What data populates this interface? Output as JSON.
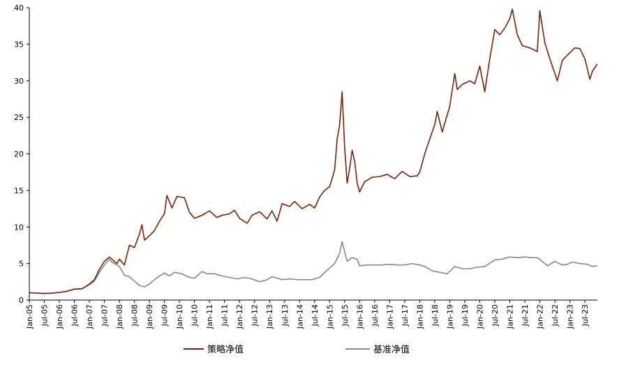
{
  "chart_data": {
    "type": "line",
    "title": "",
    "xlabel": "",
    "ylabel": "",
    "ylim": [
      0,
      40
    ],
    "yticks": [
      0,
      5,
      10,
      15,
      20,
      25,
      30,
      35,
      40
    ],
    "xlim": [
      "2005-01",
      "2023-12"
    ],
    "xtick_labels": [
      "Jan-05",
      "Jul-05",
      "Jan-06",
      "Jul-06",
      "Jan-07",
      "Jul-07",
      "Jan-08",
      "Jul-08",
      "Jan-09",
      "Jul-09",
      "Jan-10",
      "Jul-10",
      "Jan-11",
      "Jul-11",
      "Jan-12",
      "Jul-12",
      "Jan-13",
      "Jul-13",
      "Jan-14",
      "Jul-14",
      "Jan-15",
      "Jul-15",
      "Jan-16",
      "Jul-16",
      "Jan-17",
      "Jul-17",
      "Jan-18",
      "Jul-18",
      "Jan-19",
      "Jul-19",
      "Jan-20",
      "Jul-20",
      "Jan-21",
      "Jul-21",
      "Jan-22",
      "Jul-22",
      "Jan-23",
      "Jul-23"
    ],
    "grid": false,
    "legend_position": "bottom",
    "series": [
      {
        "name": "策略净值",
        "color": "#7B2000",
        "points": [
          [
            "2005-01",
            1.0
          ],
          [
            "2005-04",
            0.95
          ],
          [
            "2005-07",
            0.9
          ],
          [
            "2005-10",
            0.95
          ],
          [
            "2006-01",
            1.05
          ],
          [
            "2006-04",
            1.2
          ],
          [
            "2006-07",
            1.5
          ],
          [
            "2006-10",
            1.55
          ],
          [
            "2007-01",
            2.2
          ],
          [
            "2007-03",
            2.8
          ],
          [
            "2007-05",
            4.2
          ],
          [
            "2007-07",
            5.3
          ],
          [
            "2007-09",
            5.9
          ],
          [
            "2007-10",
            5.6
          ],
          [
            "2007-12",
            5.0
          ],
          [
            "2008-01",
            5.6
          ],
          [
            "2008-03",
            4.8
          ],
          [
            "2008-05",
            7.5
          ],
          [
            "2008-07",
            7.2
          ],
          [
            "2008-09",
            9.0
          ],
          [
            "2008-10",
            10.3
          ],
          [
            "2008-11",
            8.2
          ],
          [
            "2009-01",
            8.8
          ],
          [
            "2009-03",
            9.5
          ],
          [
            "2009-05",
            10.8
          ],
          [
            "2009-07",
            11.8
          ],
          [
            "2009-08",
            14.3
          ],
          [
            "2009-10",
            12.6
          ],
          [
            "2009-12",
            14.2
          ],
          [
            "2010-03",
            14.0
          ],
          [
            "2010-05",
            12.0
          ],
          [
            "2010-07",
            11.2
          ],
          [
            "2010-10",
            11.6
          ],
          [
            "2011-01",
            12.2
          ],
          [
            "2011-04",
            11.3
          ],
          [
            "2011-06",
            11.6
          ],
          [
            "2011-09",
            11.8
          ],
          [
            "2011-11",
            12.3
          ],
          [
            "2012-01",
            11.2
          ],
          [
            "2012-04",
            10.5
          ],
          [
            "2012-06",
            11.6
          ],
          [
            "2012-09",
            12.1
          ],
          [
            "2012-12",
            11.1
          ],
          [
            "2013-02",
            12.2
          ],
          [
            "2013-04",
            10.8
          ],
          [
            "2013-06",
            13.2
          ],
          [
            "2013-09",
            12.8
          ],
          [
            "2013-11",
            13.5
          ],
          [
            "2014-02",
            12.5
          ],
          [
            "2014-05",
            13.1
          ],
          [
            "2014-07",
            12.6
          ],
          [
            "2014-09",
            14.1
          ],
          [
            "2014-11",
            15.0
          ],
          [
            "2015-01",
            15.5
          ],
          [
            "2015-03",
            17.8
          ],
          [
            "2015-04",
            22.0
          ],
          [
            "2015-05",
            24.0
          ],
          [
            "2015-06",
            28.5
          ],
          [
            "2015-07",
            21.0
          ],
          [
            "2015-08",
            16.0
          ],
          [
            "2015-09",
            18.0
          ],
          [
            "2015-10",
            20.5
          ],
          [
            "2015-11",
            19.0
          ],
          [
            "2015-12",
            16.0
          ],
          [
            "2016-01",
            14.8
          ],
          [
            "2016-03",
            16.2
          ],
          [
            "2016-06",
            16.8
          ],
          [
            "2016-09",
            16.9
          ],
          [
            "2016-12",
            17.2
          ],
          [
            "2017-03",
            16.6
          ],
          [
            "2017-06",
            17.6
          ],
          [
            "2017-09",
            16.9
          ],
          [
            "2017-12",
            17.0
          ],
          [
            "2018-01",
            17.5
          ],
          [
            "2018-03",
            20.0
          ],
          [
            "2018-05",
            22.0
          ],
          [
            "2018-07",
            24.0
          ],
          [
            "2018-08",
            25.8
          ],
          [
            "2018-10",
            23.0
          ],
          [
            "2019-01",
            26.5
          ],
          [
            "2019-03",
            31.0
          ],
          [
            "2019-04",
            28.8
          ],
          [
            "2019-06",
            29.5
          ],
          [
            "2019-09",
            30.0
          ],
          [
            "2019-11",
            29.6
          ],
          [
            "2020-01",
            32.0
          ],
          [
            "2020-03",
            28.5
          ],
          [
            "2020-05",
            33.0
          ],
          [
            "2020-07",
            37.0
          ],
          [
            "2020-09",
            36.3
          ],
          [
            "2020-11",
            37.2
          ],
          [
            "2021-01",
            38.5
          ],
          [
            "2021-02",
            39.8
          ],
          [
            "2021-04",
            36.3
          ],
          [
            "2021-06",
            34.8
          ],
          [
            "2021-09",
            34.5
          ],
          [
            "2021-12",
            34.0
          ],
          [
            "2022-01",
            39.6
          ],
          [
            "2022-03",
            35.2
          ],
          [
            "2022-05",
            33.0
          ],
          [
            "2022-08",
            30.0
          ],
          [
            "2022-10",
            32.8
          ],
          [
            "2022-12",
            33.5
          ],
          [
            "2023-03",
            34.5
          ],
          [
            "2023-05",
            34.4
          ],
          [
            "2023-07",
            33.0
          ],
          [
            "2023-09",
            30.2
          ],
          [
            "2023-10",
            31.3
          ],
          [
            "2023-12",
            32.3
          ]
        ]
      },
      {
        "name": "基准净值",
        "color": "#878787",
        "points": [
          [
            "2005-01",
            1.0
          ],
          [
            "2005-04",
            0.95
          ],
          [
            "2005-07",
            0.9
          ],
          [
            "2005-10",
            0.93
          ],
          [
            "2006-01",
            1.05
          ],
          [
            "2006-04",
            1.2
          ],
          [
            "2006-07",
            1.5
          ],
          [
            "2006-10",
            1.55
          ],
          [
            "2007-01",
            2.1
          ],
          [
            "2007-03",
            2.6
          ],
          [
            "2007-05",
            3.8
          ],
          [
            "2007-07",
            4.8
          ],
          [
            "2007-09",
            5.6
          ],
          [
            "2007-10",
            5.2
          ],
          [
            "2007-12",
            4.8
          ],
          [
            "2008-01",
            4.6
          ],
          [
            "2008-03",
            3.4
          ],
          [
            "2008-05",
            3.2
          ],
          [
            "2008-07",
            2.6
          ],
          [
            "2008-09",
            2.0
          ],
          [
            "2008-11",
            1.8
          ],
          [
            "2009-01",
            2.2
          ],
          [
            "2009-03",
            2.8
          ],
          [
            "2009-05",
            3.3
          ],
          [
            "2009-07",
            3.7
          ],
          [
            "2009-09",
            3.3
          ],
          [
            "2009-11",
            3.8
          ],
          [
            "2010-02",
            3.6
          ],
          [
            "2010-05",
            3.1
          ],
          [
            "2010-07",
            3.0
          ],
          [
            "2010-10",
            3.9
          ],
          [
            "2010-12",
            3.6
          ],
          [
            "2011-03",
            3.6
          ],
          [
            "2011-06",
            3.3
          ],
          [
            "2011-09",
            3.1
          ],
          [
            "2011-12",
            2.9
          ],
          [
            "2012-03",
            3.1
          ],
          [
            "2012-06",
            2.9
          ],
          [
            "2012-09",
            2.5
          ],
          [
            "2012-12",
            2.8
          ],
          [
            "2013-02",
            3.2
          ],
          [
            "2013-06",
            2.8
          ],
          [
            "2013-09",
            2.9
          ],
          [
            "2013-12",
            2.8
          ],
          [
            "2014-03",
            2.8
          ],
          [
            "2014-06",
            2.8
          ],
          [
            "2014-09",
            3.1
          ],
          [
            "2014-12",
            4.1
          ],
          [
            "2015-03",
            5.0
          ],
          [
            "2015-05",
            6.4
          ],
          [
            "2015-06",
            8.0
          ],
          [
            "2015-08",
            5.3
          ],
          [
            "2015-10",
            5.8
          ],
          [
            "2015-12",
            5.6
          ],
          [
            "2016-01",
            4.7
          ],
          [
            "2016-04",
            4.8
          ],
          [
            "2016-07",
            4.8
          ],
          [
            "2016-10",
            4.8
          ],
          [
            "2017-01",
            4.9
          ],
          [
            "2017-04",
            4.8
          ],
          [
            "2017-07",
            4.8
          ],
          [
            "2017-10",
            5.0
          ],
          [
            "2018-01",
            4.8
          ],
          [
            "2018-03",
            4.6
          ],
          [
            "2018-06",
            4.0
          ],
          [
            "2018-09",
            3.8
          ],
          [
            "2018-12",
            3.6
          ],
          [
            "2019-03",
            4.6
          ],
          [
            "2019-06",
            4.3
          ],
          [
            "2019-09",
            4.3
          ],
          [
            "2019-12",
            4.5
          ],
          [
            "2020-03",
            4.6
          ],
          [
            "2020-07",
            5.5
          ],
          [
            "2020-10",
            5.6
          ],
          [
            "2021-01",
            5.9
          ],
          [
            "2021-04",
            5.8
          ],
          [
            "2021-07",
            5.9
          ],
          [
            "2021-10",
            5.8
          ],
          [
            "2021-12",
            5.8
          ],
          [
            "2022-02",
            5.3
          ],
          [
            "2022-04",
            4.7
          ],
          [
            "2022-07",
            5.3
          ],
          [
            "2022-10",
            4.8
          ],
          [
            "2022-12",
            4.9
          ],
          [
            "2023-02",
            5.2
          ],
          [
            "2023-05",
            5.0
          ],
          [
            "2023-08",
            4.9
          ],
          [
            "2023-10",
            4.6
          ],
          [
            "2023-12",
            4.7
          ]
        ]
      }
    ]
  }
}
